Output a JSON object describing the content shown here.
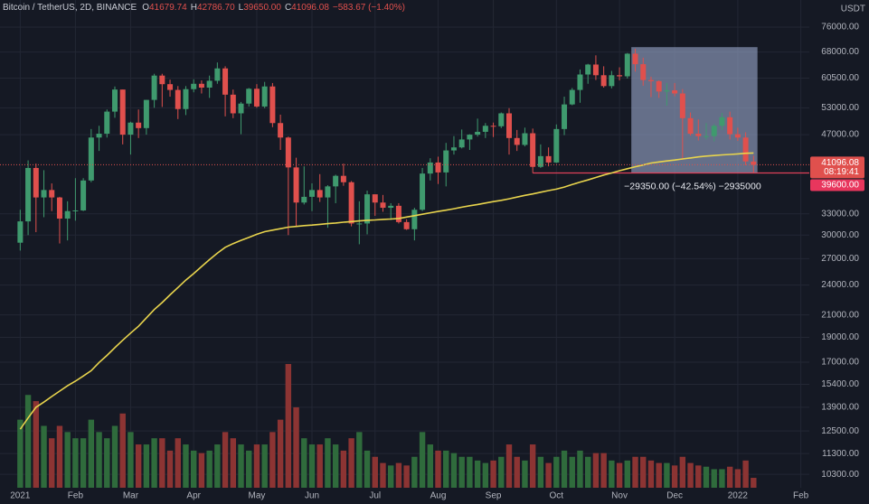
{
  "chart_data": {
    "type": "candlestick",
    "header": {
      "symbol": "Bitcoin / TetherUS, 2D, BINANCE",
      "fields": [
        {
          "label": "O",
          "value": "41679.74"
        },
        {
          "label": "H",
          "value": "42786.70"
        },
        {
          "label": "L",
          "value": "39650.00"
        },
        {
          "label": "C",
          "value": "41096.08"
        }
      ],
      "change": "−583.67 (−1.40%)"
    },
    "axis_unit": "USDT",
    "categories": [
      "2021",
      null,
      null,
      null,
      null,
      null,
      null,
      "Feb",
      null,
      null,
      null,
      null,
      null,
      null,
      "Mar",
      null,
      null,
      null,
      null,
      null,
      null,
      null,
      "Apr",
      null,
      null,
      null,
      null,
      null,
      null,
      null,
      "May",
      null,
      null,
      null,
      null,
      null,
      null,
      "Jun",
      null,
      null,
      null,
      null,
      null,
      null,
      null,
      "Jul",
      null,
      null,
      null,
      null,
      null,
      null,
      null,
      "Aug",
      null,
      null,
      null,
      null,
      null,
      null,
      "Sep",
      null,
      null,
      null,
      null,
      null,
      null,
      null,
      "Oct",
      null,
      null,
      null,
      null,
      null,
      null,
      null,
      "Nov",
      null,
      null,
      null,
      null,
      null,
      null,
      "Dec",
      null,
      null,
      null,
      null,
      null,
      null,
      null,
      "2022",
      null,
      null,
      null,
      null,
      null,
      null,
      null,
      "Feb",
      null
    ],
    "open": [
      29000,
      31900,
      40500,
      35500,
      36700,
      35500,
      32300,
      33400,
      33500,
      38300,
      46400,
      47200,
      52100,
      57500,
      47000,
      49600,
      48400,
      54900,
      61200,
      58900,
      57400,
      52700,
      57600,
      59000,
      58000,
      59800,
      63200,
      56200,
      51700,
      54000,
      57700,
      53300,
      58300,
      49500,
      46400,
      40600,
      34700,
      35600,
      36700,
      35500,
      37300,
      39100,
      38000,
      31600,
      31600,
      36000,
      34700,
      33900,
      34200,
      31800,
      30800,
      33600,
      39500,
      41500,
      39700,
      43800,
      44400,
      46000,
      47000,
      47600,
      48900,
      48800,
      51700,
      46300,
      44900,
      47300,
      40700,
      42700,
      41500,
      48200,
      53800,
      57400,
      61500,
      64300,
      61300,
      58400,
      61300,
      61000,
      67500,
      64400,
      60000,
      59700,
      57000,
      57300,
      56500,
      50600,
      47200,
      46700,
      46700,
      48900,
      50800,
      47100,
      46400,
      41679.74,
      null,
      null,
      null,
      null,
      null,
      null,
      null
    ],
    "high": [
      33600,
      41900,
      41300,
      40100,
      37800,
      35600,
      34900,
      38700,
      38700,
      48200,
      48900,
      52600,
      58300,
      57500,
      49800,
      52600,
      54900,
      61700,
      61700,
      60100,
      58400,
      58400,
      60200,
      59900,
      61200,
      64900,
      63800,
      57500,
      54400,
      57900,
      58900,
      59500,
      59200,
      51400,
      46600,
      42400,
      40800,
      37800,
      39400,
      37500,
      39300,
      41300,
      38200,
      34900,
      36600,
      36000,
      35900,
      34600,
      34600,
      32200,
      33900,
      40500,
      42300,
      42600,
      45300,
      46700,
      48100,
      47100,
      50500,
      49500,
      49600,
      51900,
      52900,
      48000,
      48500,
      48300,
      45000,
      44400,
      49200,
      55700,
      57900,
      62900,
      64500,
      67000,
      63800,
      62500,
      63500,
      67700,
      69000,
      66300,
      60900,
      59900,
      59200,
      59200,
      57600,
      51900,
      50300,
      49500,
      49300,
      51800,
      52100,
      48500,
      47500,
      42786.7,
      null,
      null,
      null,
      null,
      null,
      null,
      null
    ],
    "low": [
      28000,
      30000,
      30400,
      32500,
      33400,
      28900,
      29300,
      32000,
      33400,
      38000,
      43700,
      46400,
      50700,
      45000,
      43000,
      46300,
      47000,
      53000,
      53200,
      55700,
      50400,
      51300,
      56800,
      56500,
      55400,
      59000,
      51000,
      50600,
      47100,
      53300,
      53000,
      52900,
      48600,
      43900,
      30000,
      31100,
      34400,
      33400,
      34800,
      31000,
      34600,
      37400,
      31200,
      28800,
      30100,
      32700,
      33300,
      32100,
      31600,
      30700,
      29300,
      33400,
      38300,
      37700,
      37300,
      43000,
      44200,
      43900,
      46600,
      46300,
      46500,
      48400,
      43000,
      43700,
      44600,
      39600,
      40500,
      40800,
      41400,
      46900,
      53600,
      54200,
      59000,
      60000,
      58000,
      57800,
      59900,
      60400,
      62300,
      58500,
      55600,
      55400,
      53500,
      55800,
      42000,
      46800,
      45800,
      46000,
      45600,
      48000,
      46000,
      45700,
      41000,
      39650,
      null,
      null,
      null,
      null,
      null,
      null,
      null
    ],
    "close": [
      31900,
      40500,
      35500,
      36700,
      35500,
      32300,
      33400,
      33500,
      38300,
      46400,
      47200,
      52100,
      57500,
      47000,
      49600,
      48400,
      54900,
      61200,
      58900,
      57400,
      52700,
      57600,
      59000,
      58000,
      59800,
      63200,
      56200,
      51700,
      54000,
      57700,
      53300,
      58300,
      49500,
      46400,
      40600,
      34700,
      35600,
      36700,
      35500,
      37300,
      39100,
      38000,
      31600,
      31600,
      36000,
      34700,
      33900,
      34200,
      31800,
      30800,
      33600,
      39500,
      41500,
      39700,
      43800,
      44400,
      46000,
      47000,
      47600,
      48900,
      48800,
      51700,
      46300,
      44900,
      47300,
      40700,
      42700,
      41500,
      48200,
      53800,
      57400,
      61500,
      64300,
      61300,
      58400,
      61300,
      61000,
      67500,
      64400,
      60000,
      59700,
      57000,
      57300,
      56500,
      50600,
      47200,
      46700,
      46700,
      48900,
      50800,
      47100,
      46400,
      41700,
      41096.08,
      null,
      null,
      null,
      null,
      null,
      null,
      null
    ],
    "volume": [
      55,
      75,
      70,
      50,
      40,
      50,
      45,
      40,
      40,
      55,
      45,
      40,
      50,
      60,
      45,
      35,
      35,
      40,
      40,
      30,
      40,
      35,
      30,
      28,
      30,
      35,
      45,
      40,
      35,
      30,
      35,
      35,
      45,
      55,
      100,
      65,
      40,
      35,
      35,
      40,
      35,
      30,
      40,
      45,
      30,
      25,
      20,
      18,
      20,
      18,
      25,
      45,
      35,
      30,
      30,
      28,
      25,
      25,
      22,
      20,
      22,
      25,
      35,
      25,
      22,
      35,
      25,
      20,
      25,
      30,
      25,
      30,
      25,
      28,
      28,
      22,
      20,
      22,
      25,
      25,
      22,
      20,
      20,
      18,
      25,
      20,
      18,
      17,
      15,
      15,
      17,
      15,
      22,
      8,
      null,
      null,
      null,
      null,
      null,
      null,
      null
    ],
    "ma": [
      12600,
      13250,
      13900,
      14220,
      14580,
      14940,
      15300,
      15620,
      15980,
      16370,
      16980,
      17520,
      18140,
      18750,
      19360,
      19960,
      20730,
      21510,
      22190,
      22970,
      23740,
      24540,
      25260,
      26070,
      26880,
      27690,
      28410,
      28880,
      29310,
      29690,
      30110,
      30470,
      30680,
      30870,
      31080,
      31190,
      31300,
      31380,
      31480,
      31580,
      31670,
      31780,
      31870,
      31970,
      32050,
      32110,
      32180,
      32240,
      32320,
      32530,
      32720,
      32930,
      33140,
      33350,
      33540,
      33750,
      33980,
      34200,
      34400,
      34630,
      34850,
      35050,
      35290,
      35560,
      35830,
      36070,
      36340,
      36610,
      36850,
      37190,
      37610,
      38030,
      38400,
      38820,
      39240,
      39610,
      40000,
      40360,
      40720,
      41040,
      41400,
      41600,
      41790,
      41960,
      42160,
      42350,
      42550,
      42710,
      42820,
      42930,
      43020,
      43130,
      43240,
      43300,
      null,
      null,
      null,
      null,
      null,
      null,
      null
    ],
    "up_color": "#3f9a6e",
    "down_color": "#e0504d",
    "volume_up_color": "#2f6b3c",
    "volume_down_color": "#8c3433",
    "ma_color": "#e8d44d",
    "ylim": [
      9700,
      85800
    ],
    "log_scale": true,
    "grid": true,
    "yticks": [
      {
        "value": 76000,
        "label": "76000.00"
      },
      {
        "value": 68000,
        "label": "68000.00"
      },
      {
        "value": 60500,
        "label": "60500.00"
      },
      {
        "value": 53000,
        "label": "53000.00"
      },
      {
        "value": 47000,
        "label": "47000.00"
      },
      {
        "value": 33000,
        "label": "33000.00"
      },
      {
        "value": 30000,
        "label": "30000.00"
      },
      {
        "value": 27000,
        "label": "27000.00"
      },
      {
        "value": 24000,
        "label": "24000.00"
      },
      {
        "value": 21000,
        "label": "21000.00"
      },
      {
        "value": 19000,
        "label": "19000.00"
      },
      {
        "value": 17000,
        "label": "17000.00"
      },
      {
        "value": 15400,
        "label": "15400.00"
      },
      {
        "value": 13900,
        "label": "13900.00"
      },
      {
        "value": 12500,
        "label": "12500.00"
      },
      {
        "value": 11300,
        "label": "11300.00"
      },
      {
        "value": 10300,
        "label": "10300.00"
      }
    ],
    "last_price_label": "41096.08",
    "countdown": "08:19:41",
    "measure": {
      "start": 78,
      "end": 93,
      "top": 69500,
      "bottom": 39600,
      "label": "−29350.00 (−42.54%) −2935000",
      "price_label": "39600.00"
    }
  }
}
